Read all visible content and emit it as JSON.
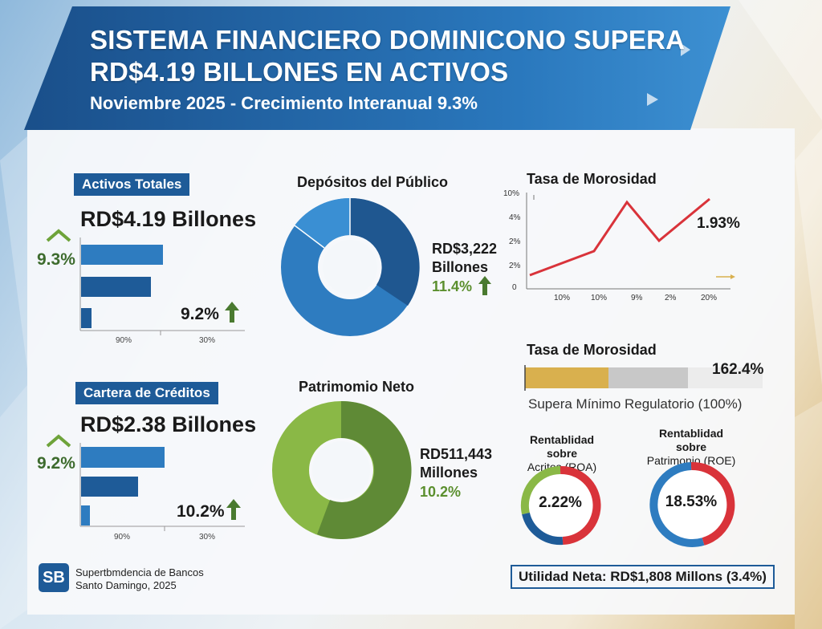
{
  "header": {
    "title_line1": "SISTEMA FINANCIERO DOMINICONO  SUPERA",
    "title_line2": "RD$4.19 BILLONES EN ACTIVOS",
    "subtitle": "Noviembre 2025 - Crecimiento Interanual 9.3%"
  },
  "activos": {
    "tag": "Activos Totales",
    "value": "RD$4.19 Billones",
    "growth": "9.3%",
    "growth2": "9.2%",
    "ticks": [
      "90%",
      "30%"
    ]
  },
  "cartera": {
    "tag": "Cartera de Créditos",
    "value": "RD$2.38 Billones",
    "growth": "9.2%",
    "growth2": "10.2%",
    "ticks": [
      "90%",
      "30%"
    ]
  },
  "depositos": {
    "title": "Depósitos del Público",
    "value_line1": "RD$3,222",
    "value_line2": "Billones",
    "growth": "11.4%"
  },
  "patrimonio": {
    "title": "Patrimomio Neto",
    "value_line1": "RD511,443",
    "value_line2": "Millones",
    "growth": "10.2%"
  },
  "morosidad_chart": {
    "title": "Tasa de Morosidad",
    "value_label": "1.93%",
    "y_ticks": [
      "10%",
      "4%",
      "2%",
      "2%",
      "0"
    ],
    "x_ticks": [
      "10%",
      "10%",
      "9%",
      "2%",
      "20%"
    ]
  },
  "morosidad_bar": {
    "title": "Tasa de Morosidad",
    "value": "162.4%",
    "caption": "Supera Mínimo Regulatorio (100%)"
  },
  "roa": {
    "label_line1": "Rentablidad sobre",
    "label_line2": "Acritos (ROA)",
    "value": "2.22%"
  },
  "roe": {
    "label_line1": "Rentablidad sobre",
    "label_line2": "Patrimonio (ROE)",
    "value": "18.53%"
  },
  "utilidad": "Utilidad Neta: RD$1,808 Millons (3.4%)",
  "footer": {
    "logo": "SB",
    "line1": "Supertbmdencia de Bancos",
    "line2": "Santo Damingo, 2025"
  },
  "colors": {
    "blue_dark": "#1e5b98",
    "blue": "#2e7cc0",
    "green": "#8ab846",
    "green_dark": "#5f8a36",
    "red": "#d9333a",
    "gold": "#d9b04e"
  },
  "chart_data": [
    {
      "type": "bar",
      "title": "Activos Totales",
      "values": [
        0.85,
        0.72,
        0.12
      ],
      "orientation": "horizontal"
    },
    {
      "type": "bar",
      "title": "Cartera de Créditos",
      "values": [
        0.87,
        0.62,
        0.1
      ],
      "orientation": "horizontal"
    },
    {
      "type": "pie",
      "title": "Depósitos del Público",
      "style": "donut",
      "values": [
        36,
        48,
        16
      ]
    },
    {
      "type": "pie",
      "title": "Patrimomio Neto",
      "style": "donut",
      "values": [
        45,
        55
      ]
    },
    {
      "type": "line",
      "title": "Tasa de Morosidad",
      "x": [
        0,
        1,
        2,
        3,
        4,
        5
      ],
      "y": [
        0.8,
        1.6,
        3.7,
        2.0,
        3.2,
        3.9
      ],
      "ylim": [
        0,
        4.3
      ]
    },
    {
      "type": "bar",
      "title": "Tasa de Morosidad",
      "values": [
        162.4
      ],
      "reference": 100
    },
    {
      "type": "pie",
      "title": "ROA",
      "style": "donut",
      "values": [
        48,
        20,
        32
      ]
    },
    {
      "type": "pie",
      "title": "ROE",
      "style": "donut",
      "values": [
        55,
        45
      ]
    }
  ]
}
